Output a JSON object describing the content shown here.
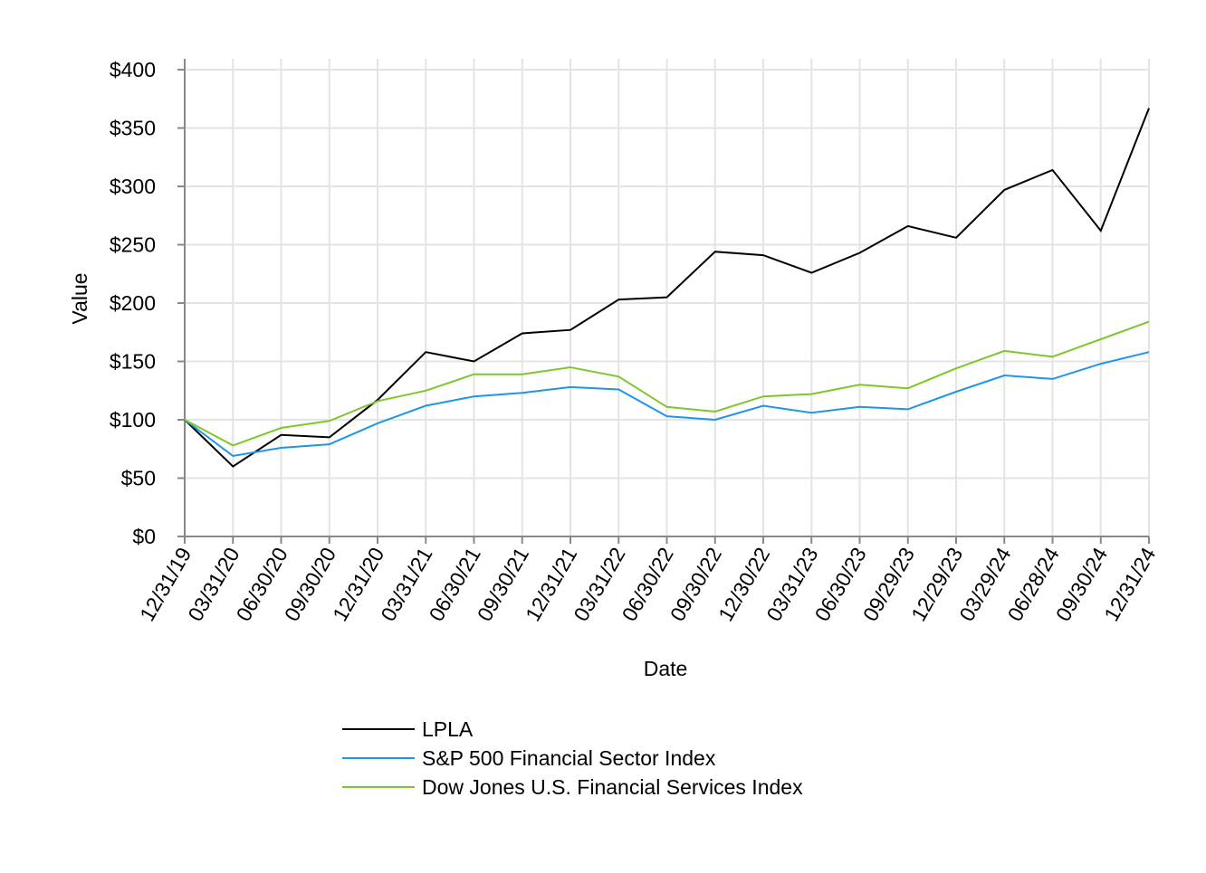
{
  "chart_data": {
    "type": "line",
    "title": "",
    "xlabel": "Date",
    "ylabel": "Value",
    "ylim": [
      0,
      400
    ],
    "yticks": [
      0,
      50,
      100,
      150,
      200,
      250,
      300,
      350,
      400
    ],
    "ytick_labels": [
      "$0",
      "$50",
      "$100",
      "$150",
      "$200",
      "$250",
      "$300",
      "$350",
      "$400"
    ],
    "grid": true,
    "legend_position": "bottom",
    "categories": [
      "12/31/19",
      "03/31/20",
      "06/30/20",
      "09/30/20",
      "12/31/20",
      "03/31/21",
      "06/30/21",
      "09/30/21",
      "12/31/21",
      "03/31/22",
      "06/30/22",
      "09/30/22",
      "12/30/22",
      "03/31/23",
      "06/30/23",
      "09/29/23",
      "12/29/23",
      "03/29/24",
      "06/28/24",
      "09/30/24",
      "12/31/24"
    ],
    "series": [
      {
        "name": "LPLA",
        "color": "#000000",
        "values": [
          100,
          60,
          87,
          85,
          117,
          158,
          150,
          174,
          177,
          203,
          205,
          244,
          241,
          226,
          243,
          266,
          256,
          297,
          314,
          262,
          367
        ]
      },
      {
        "name": "S&P 500 Financial Sector Index",
        "color": "#1e96e6",
        "values": [
          100,
          69,
          76,
          79,
          97,
          112,
          120,
          123,
          128,
          126,
          103,
          100,
          112,
          106,
          111,
          109,
          124,
          138,
          135,
          148,
          158
        ]
      },
      {
        "name": "Dow Jones U.S. Financial Services Index",
        "color": "#7dc72a",
        "values": [
          100,
          78,
          93,
          99,
          116,
          125,
          139,
          139,
          145,
          137,
          111,
          107,
          120,
          122,
          130,
          127,
          144,
          159,
          154,
          169,
          184
        ]
      }
    ]
  }
}
